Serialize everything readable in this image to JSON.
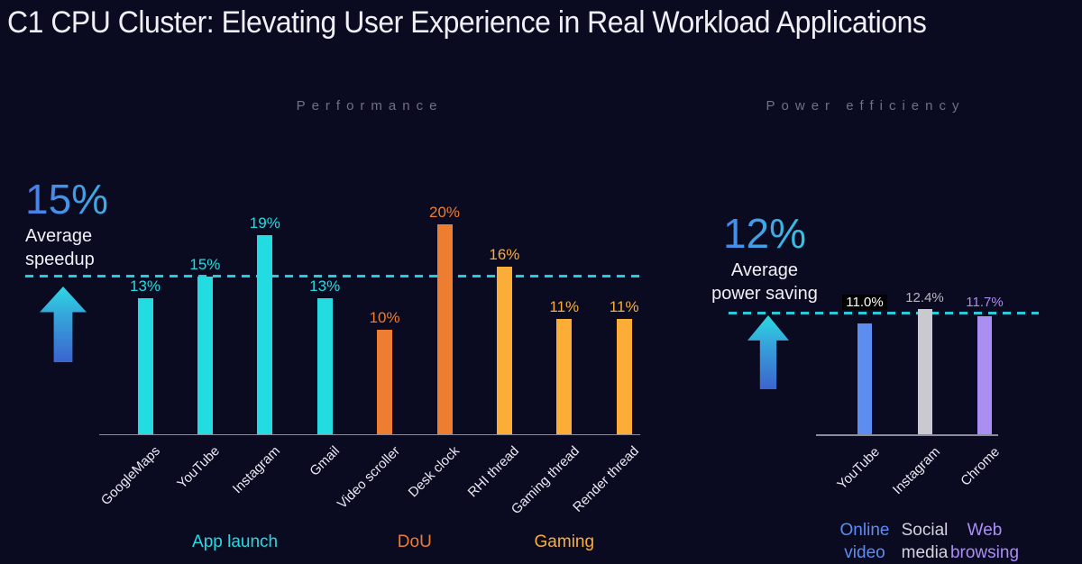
{
  "title": "C1 CPU Cluster: Elevating User Experience in Real Workload Applications",
  "background_color": "#0a0a21",
  "chart_data": [
    {
      "type": "bar",
      "title": "Performance",
      "unit": "%",
      "categories": [
        "GoogleMaps",
        "YouTube",
        "Instagram",
        "Gmail",
        "Video scroller",
        "Desk clock",
        "RHI thread",
        "Gaming thread",
        "Render thread"
      ],
      "values": [
        13,
        15,
        19,
        13,
        10,
        20,
        16,
        11,
        11
      ],
      "bars": [
        {
          "category": "GoogleMaps",
          "value": 13,
          "label": "13%",
          "group": "App launch"
        },
        {
          "category": "YouTube",
          "value": 15,
          "label": "15%",
          "group": "App launch"
        },
        {
          "category": "Instagram",
          "value": 19,
          "label": "19%",
          "group": "App launch"
        },
        {
          "category": "Gmail",
          "value": 13,
          "label": "13%",
          "group": "App launch"
        },
        {
          "category": "Video scroller",
          "value": 10,
          "label": "10%",
          "group": "DoU"
        },
        {
          "category": "Desk clock",
          "value": 20,
          "label": "20%",
          "group": "DoU"
        },
        {
          "category": "RHI thread",
          "value": 16,
          "label": "16%",
          "group": "Gaming"
        },
        {
          "category": "Gaming thread",
          "value": 11,
          "label": "11%",
          "group": "Gaming"
        },
        {
          "category": "Render thread",
          "value": 11,
          "label": "11%",
          "group": "Gaming"
        }
      ],
      "groups": [
        {
          "name": "App launch",
          "color": "#23dce2"
        },
        {
          "name": "DoU",
          "color": "#ed7d31"
        },
        {
          "name": "Gaming",
          "color": "#fbad38"
        }
      ],
      "reference": {
        "value": 15,
        "label": "15%",
        "sublabel": "Average speedup",
        "line_color": "#2cc9da"
      },
      "ylim": [
        0,
        22
      ],
      "grid": false,
      "legend": "none"
    },
    {
      "type": "bar",
      "title": "Power efficiency",
      "unit": "%",
      "categories": [
        "YouTube",
        "Instagram",
        "Chrome"
      ],
      "values": [
        11.0,
        12.4,
        11.7
      ],
      "bars": [
        {
          "category": "YouTube",
          "value": 11.0,
          "label": "11.0%",
          "group": "Online video",
          "label_color": "#ffffff",
          "label_bg": "#000000"
        },
        {
          "category": "Instagram",
          "value": 12.4,
          "label": "12.4%",
          "group": "Social media",
          "label_color": "#b7b7c1"
        },
        {
          "category": "Chrome",
          "value": 11.7,
          "label": "11.7%",
          "group": "Web browsing",
          "label_color": "#a98df2"
        }
      ],
      "groups": [
        {
          "name": "Online video",
          "color": "#5c8df0"
        },
        {
          "name": "Social media",
          "color": "#c9c9cf",
          "label_color": "#d3d3dd"
        },
        {
          "name": "Web browsing",
          "color": "#ab8ef2"
        }
      ],
      "reference": {
        "value": 12,
        "label": "12%",
        "sublabel": "Average power saving",
        "line_color": "#2cc9da"
      },
      "ylim": [
        0,
        14
      ],
      "grid": false,
      "legend": "none"
    }
  ],
  "colors": {
    "accent_number_gradient": [
      "#4a7ce8",
      "#35cde2"
    ],
    "arrow_gradient": [
      "#2bd9e3",
      "#3b64cf"
    ],
    "axis": "#8b8b9e",
    "text": "#eef0f5",
    "section_header": "#71717f"
  }
}
